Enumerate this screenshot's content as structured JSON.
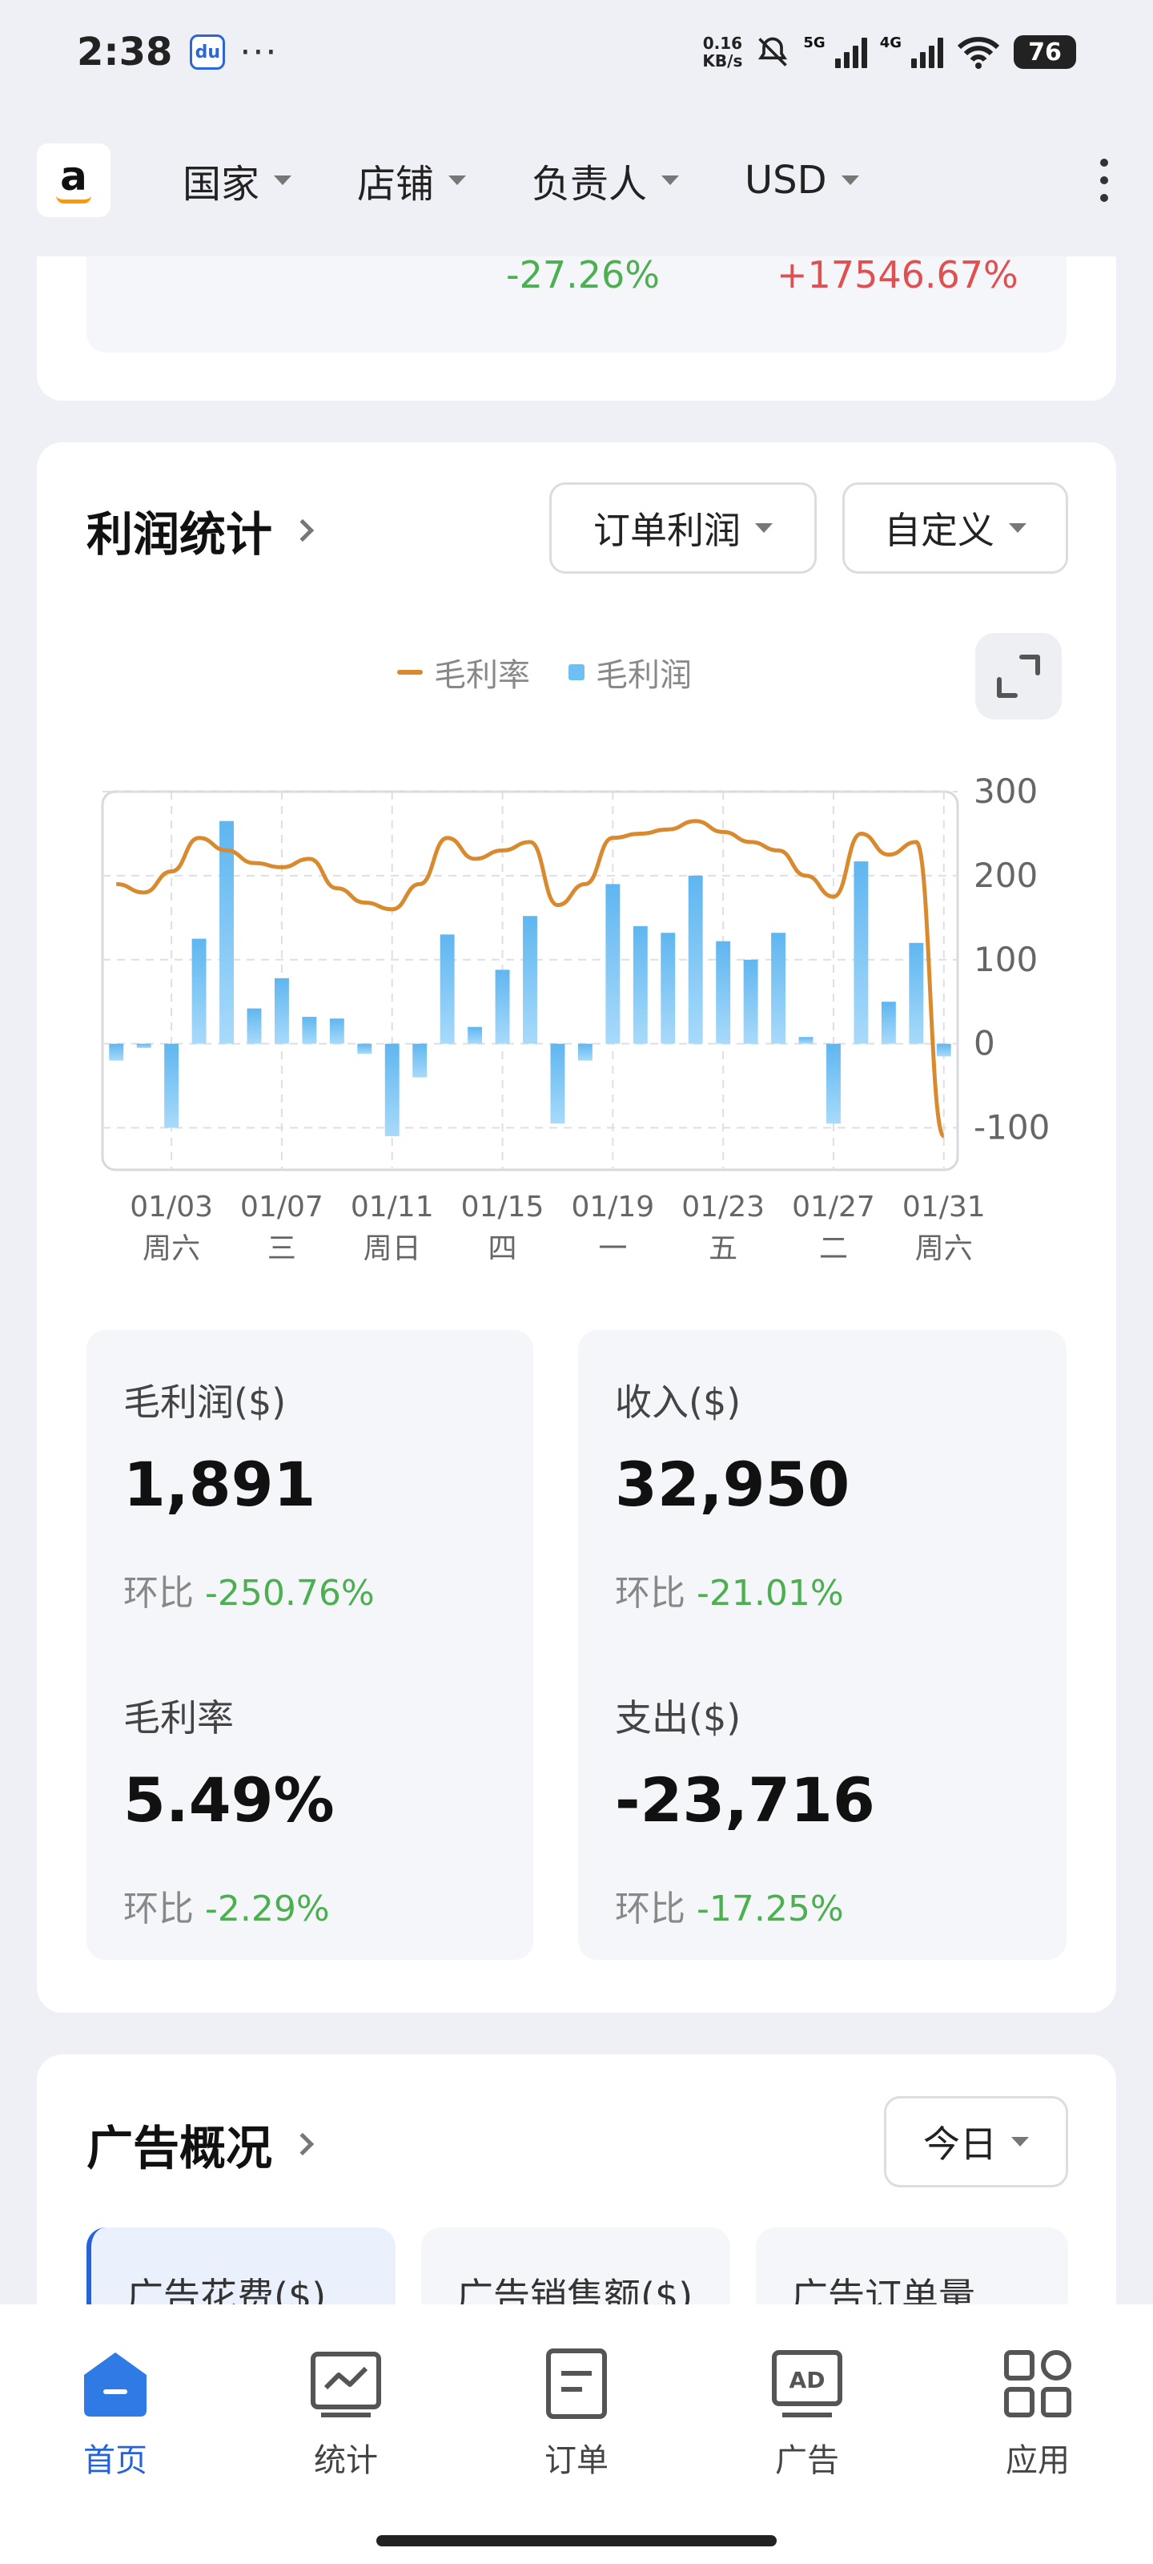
{
  "status_bar": {
    "time": "2:38",
    "app_icon": "baidu-paw-icon",
    "more": "···",
    "speed_value": "0.16",
    "speed_unit": "KB/s",
    "net1": "5G",
    "net2": "4G",
    "battery": "76"
  },
  "header": {
    "logo_letter": "a",
    "filters": [
      {
        "label": "国家"
      },
      {
        "label": "店铺"
      },
      {
        "label": "负责人"
      },
      {
        "label": "USD"
      }
    ]
  },
  "top_card": {
    "change_a": "-27.26%",
    "change_b": "+17546.67%"
  },
  "profit": {
    "title": "利润统计",
    "dropdown_type": "订单利润",
    "dropdown_range": "自定义",
    "legend_rate": "毛利率",
    "legend_profit": "毛利润",
    "metrics": [
      {
        "label": "毛利润($)",
        "value": "1,891",
        "cmp_label": "环比",
        "cmp_value": "-250.76%"
      },
      {
        "label": "收入($)",
        "value": "32,950",
        "cmp_label": "环比",
        "cmp_value": "-21.01%"
      },
      {
        "label": "毛利率",
        "value": "5.49%",
        "cmp_label": "环比",
        "cmp_value": "-2.29%"
      },
      {
        "label": "支出($)",
        "value": "-23,716",
        "cmp_label": "环比",
        "cmp_value": "-17.25%"
      }
    ]
  },
  "chart_data": {
    "type": "bar",
    "days": [
      1,
      2,
      3,
      4,
      5,
      6,
      7,
      8,
      9,
      10,
      11,
      12,
      13,
      14,
      15,
      16,
      17,
      18,
      19,
      20,
      21,
      22,
      23,
      24,
      25,
      26,
      27,
      28,
      29,
      30,
      31
    ],
    "x_ticks": [
      {
        "day": 3,
        "date": "01/03",
        "weekday": "周六"
      },
      {
        "day": 7,
        "date": "01/07",
        "weekday": "三"
      },
      {
        "day": 11,
        "date": "01/11",
        "weekday": "周日"
      },
      {
        "day": 15,
        "date": "01/15",
        "weekday": "四"
      },
      {
        "day": 19,
        "date": "01/19",
        "weekday": "一"
      },
      {
        "day": 23,
        "date": "01/23",
        "weekday": "五"
      },
      {
        "day": 27,
        "date": "01/27",
        "weekday": "二"
      },
      {
        "day": 31,
        "date": "01/31",
        "weekday": "周六"
      }
    ],
    "ylim": [
      -150,
      300
    ],
    "y_ticks": [
      300,
      200,
      100,
      0,
      -100
    ],
    "series": [
      {
        "name": "毛利润",
        "kind": "bar",
        "color": "#6ec0f2",
        "values": [
          -20,
          -5,
          -100,
          125,
          265,
          42,
          78,
          32,
          30,
          -12,
          -110,
          -40,
          130,
          20,
          88,
          152,
          -95,
          -20,
          190,
          140,
          132,
          200,
          122,
          100,
          132,
          8,
          -95,
          217,
          50,
          120,
          -15
        ]
      },
      {
        "name": "毛利率",
        "kind": "line",
        "color": "#d98a2f",
        "values": [
          190,
          180,
          205,
          245,
          230,
          215,
          210,
          220,
          185,
          168,
          160,
          190,
          245,
          220,
          230,
          240,
          165,
          190,
          245,
          250,
          255,
          265,
          252,
          240,
          230,
          200,
          175,
          250,
          225,
          240,
          -110
        ]
      }
    ],
    "grid": true,
    "legend": "top-center"
  },
  "ads": {
    "title": "广告概况",
    "dropdown": "今日",
    "tabs": [
      {
        "label": "广告花费($)"
      },
      {
        "label": "广告销售额($)"
      },
      {
        "label": "广告订单量"
      }
    ]
  },
  "nav": [
    {
      "label": "首页",
      "icon": "home-icon",
      "active": true
    },
    {
      "label": "统计",
      "icon": "chart-icon",
      "active": false
    },
    {
      "label": "订单",
      "icon": "order-icon",
      "active": false
    },
    {
      "label": "广告",
      "icon": "ad-icon",
      "active": false
    },
    {
      "label": "应用",
      "icon": "apps-icon",
      "active": false
    }
  ]
}
